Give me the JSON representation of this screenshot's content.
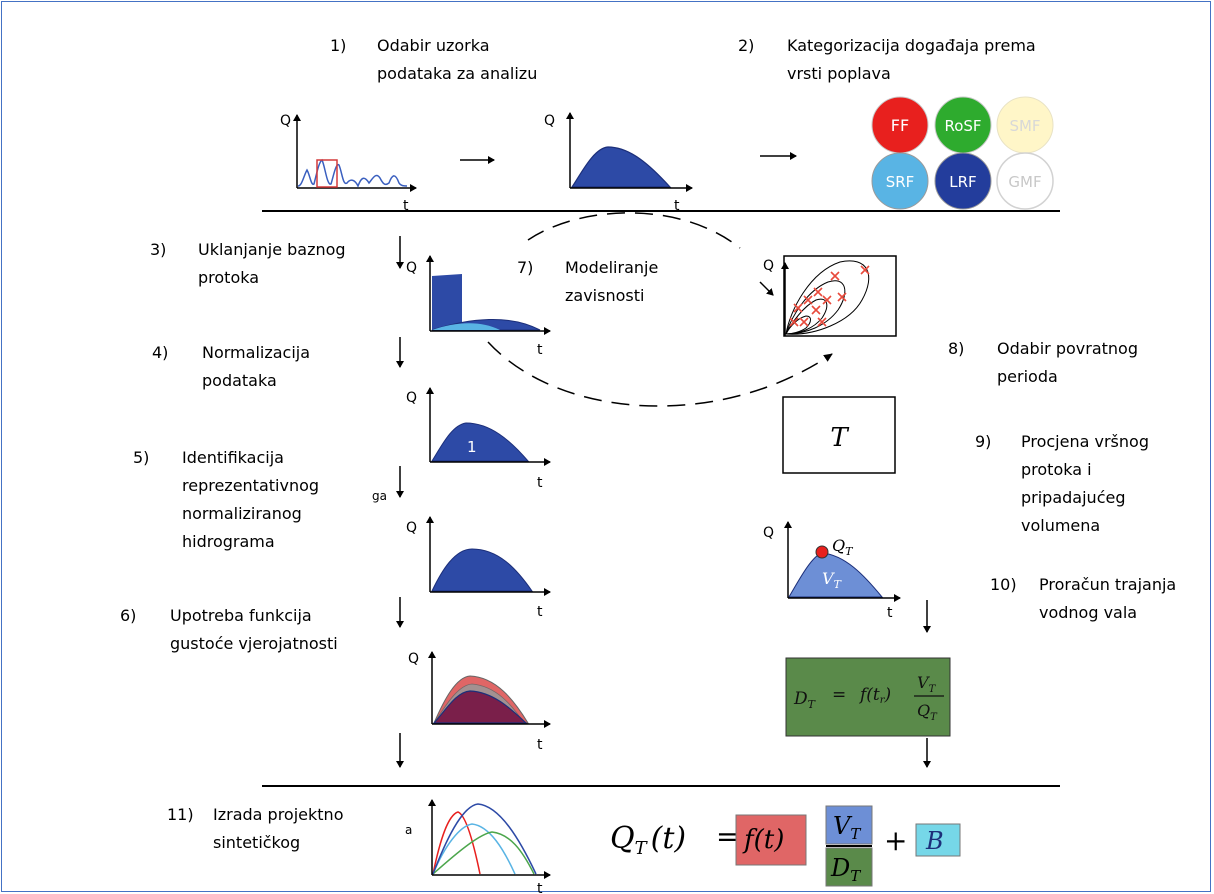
{
  "steps": [
    {
      "num": "1)",
      "lines": [
        "Odabir uzorka",
        "podataka za analizu"
      ]
    },
    {
      "num": "2)",
      "lines": [
        "Kategorizacija događaja prema",
        "vrsti poplava"
      ]
    },
    {
      "num": "3)",
      "lines": [
        "Uklanjanje baznog",
        "protoka"
      ]
    },
    {
      "num": "4)",
      "lines": [
        "Normalizacija",
        "podataka"
      ]
    },
    {
      "num": "5)",
      "lines": [
        "Identifikacija",
        "reprezentativnog",
        "normaliziranog",
        "hidrograma"
      ]
    },
    {
      "num": "6)",
      "lines": [
        "Upotreba funkcija",
        "gustoće vjerojatnosti"
      ]
    },
    {
      "num": "7)",
      "lines": [
        "Modeliranje",
        "zavisnosti"
      ]
    },
    {
      "num": "8)",
      "lines": [
        "Odabir povratnog",
        "perioda"
      ]
    },
    {
      "num": "9)",
      "lines": [
        "Procjena vršnog",
        "protoka i",
        "pripadajućeg",
        "volumena"
      ]
    },
    {
      "num": "10)",
      "lines": [
        "Proračun trajanja",
        "vodnog vala"
      ]
    },
    {
      "num": "11)",
      "lines": [
        "Izrada projektno",
        "sintetičkog"
      ]
    }
  ],
  "flood_types": [
    {
      "label": "FF",
      "color": "#e8201e"
    },
    {
      "label": "RoSF",
      "color": "#2eab2e"
    },
    {
      "label": "SMF",
      "color": "#fff6c8"
    },
    {
      "label": "SRF",
      "color": "#59b4e4"
    },
    {
      "label": "LRF",
      "color": "#233d9c"
    },
    {
      "label": "GMF",
      "color": "#ffffff"
    }
  ],
  "axis": {
    "q": "Q",
    "t": "t"
  },
  "normalized_area_label": "1",
  "fragments": {
    "ga": "ga",
    "a": "a"
  },
  "return_period_symbol": "T",
  "peak_labels": {
    "q": "Q",
    "q_sub": "T",
    "v": "V",
    "v_sub": "T"
  },
  "duration_formula": {
    "lhs": "D",
    "lhs_sub": "T",
    "eq": "=",
    "func": "f(t",
    "func_sub": "r",
    "func_close": ")",
    "num": "V",
    "num_sub": "T",
    "den": "Q",
    "den_sub": "T"
  },
  "final_formula": {
    "lhs": "Q",
    "lhs_sub": "T",
    "arg": "(t)",
    "eq": "=",
    "f": "f(t)",
    "num": "V",
    "num_sub": "T",
    "den": "D",
    "den_sub": "T",
    "plus": "+",
    "b": "B"
  },
  "colors": {
    "hydro_blue": "#2d4aa6",
    "dark_blue": "#1c2f7a",
    "red_box": "#e06666",
    "green_box": "#38761d",
    "formula_green": "#5a8a4a",
    "blue_box": "#6d8fd6",
    "cyan_box": "#76d7e8",
    "cross_red": "#e84a3c",
    "frame": "#4472c4"
  }
}
